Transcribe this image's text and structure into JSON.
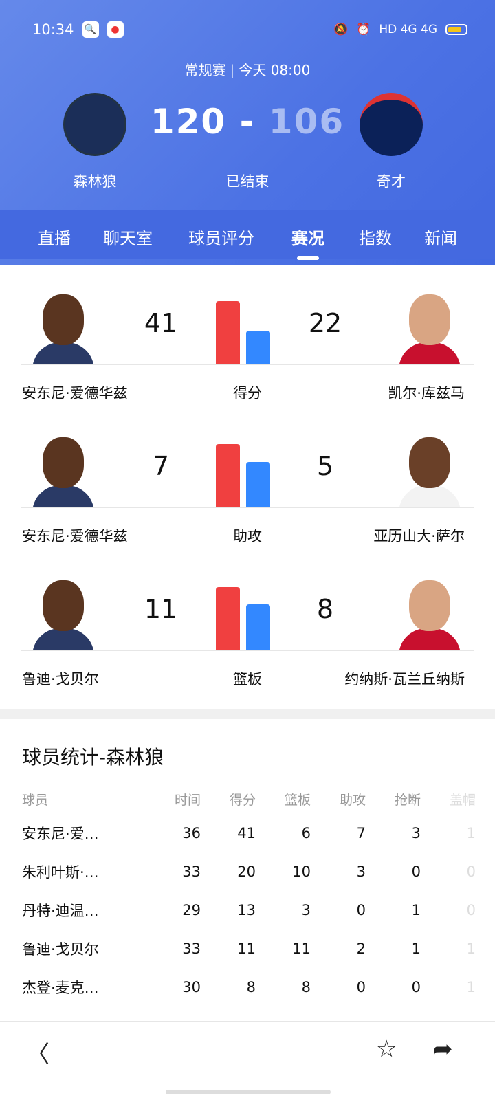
{
  "status": {
    "time": "10:34",
    "network": "HD 4G 4G"
  },
  "game": {
    "type": "常规赛",
    "time": "今天 08:00",
    "home_team": "森林狼",
    "away_team": "奇才",
    "home_score": "120",
    "away_score": "106",
    "separator": "-",
    "state": "已结束"
  },
  "tabs": [
    {
      "label": "直播"
    },
    {
      "label": "聊天室"
    },
    {
      "label": "球员评分"
    },
    {
      "label": "赛况",
      "active": true
    },
    {
      "label": "指数"
    },
    {
      "label": "新闻"
    }
  ],
  "colors": {
    "home": "#f04040",
    "away": "#3388ff",
    "header": "#4c72e4"
  },
  "comparisons": [
    {
      "stat": "得分",
      "home_player": "安东尼·爱德华兹",
      "home_value": 41,
      "away_player": "凯尔·库兹马",
      "away_value": 22
    },
    {
      "stat": "助攻",
      "home_player": "安东尼·爱德华兹",
      "home_value": 7,
      "away_player": "亚历山大·萨尔",
      "away_value": 5
    },
    {
      "stat": "篮板",
      "home_player": "鲁迪·戈贝尔",
      "home_value": 11,
      "away_player": "约纳斯·瓦兰丘纳斯",
      "away_value": 8
    }
  ],
  "player_stats": {
    "title": "球员统计-森林狼",
    "columns": [
      "球员",
      "时间",
      "得分",
      "篮板",
      "助攻",
      "抢断",
      "盖帽"
    ],
    "rows": [
      [
        "安东尼·爱…",
        "36",
        "41",
        "6",
        "7",
        "3",
        "1"
      ],
      [
        "朱利叶斯·…",
        "33",
        "20",
        "10",
        "3",
        "0",
        "0"
      ],
      [
        "丹特·迪温…",
        "29",
        "13",
        "3",
        "0",
        "1",
        "0"
      ],
      [
        "鲁迪·戈贝尔",
        "33",
        "11",
        "11",
        "2",
        "1",
        "1"
      ],
      [
        "杰登·麦克…",
        "30",
        "8",
        "8",
        "0",
        "0",
        "1"
      ]
    ]
  },
  "bottom": {
    "back": "back-icon",
    "favorite": "star-icon",
    "share": "share-icon"
  }
}
